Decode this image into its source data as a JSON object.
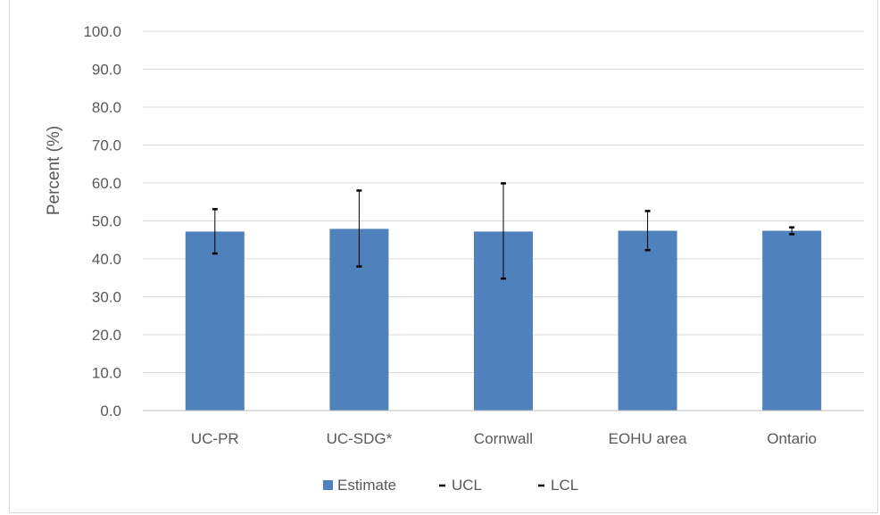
{
  "chart_data": {
    "type": "bar",
    "title": "",
    "xlabel": "",
    "ylabel": "Percent (%)",
    "ylim": [
      0,
      100
    ],
    "yticks": [
      "0.0",
      "10.0",
      "20.0",
      "30.0",
      "40.0",
      "50.0",
      "60.0",
      "70.0",
      "80.0",
      "90.0",
      "100.0"
    ],
    "grid": true,
    "legend_position": "bottom",
    "categories": [
      "UC-PR",
      "UC-SDG*",
      "Cornwall",
      "EOHU area",
      "Ontario"
    ],
    "series": [
      {
        "name": "Estimate",
        "values": [
          47.2,
          47.9,
          47.2,
          47.4,
          47.4
        ],
        "color": "#4f81bd"
      },
      {
        "name": "UCL",
        "values": [
          53.1,
          58.0,
          59.9,
          52.6,
          48.3
        ],
        "color": "#000000"
      },
      {
        "name": "LCL",
        "values": [
          41.4,
          38.0,
          34.8,
          42.3,
          46.5
        ],
        "color": "#000000"
      }
    ]
  }
}
